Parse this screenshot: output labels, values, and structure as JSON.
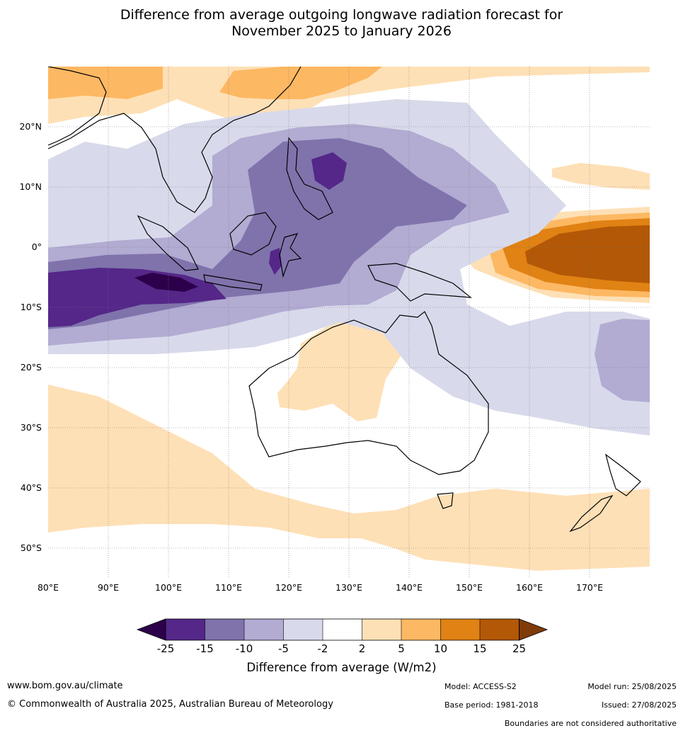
{
  "title": {
    "line1": "Difference from average outgoing longwave radiation forecast for",
    "line2": "November 2025 to January 2026"
  },
  "map": {
    "lat_ticks": [
      "20°N",
      "10°N",
      "0°",
      "10°S",
      "20°S",
      "30°S",
      "40°S",
      "50°S"
    ],
    "lon_ticks": [
      "80°E",
      "90°E",
      "100°E",
      "110°E",
      "120°E",
      "130°E",
      "140°E",
      "150°E",
      "160°E",
      "170°E"
    ],
    "extent_lon": [
      80,
      180
    ],
    "extent_lat": [
      -55,
      30
    ],
    "gridlines": true
  },
  "colorbar": {
    "labels": [
      "-25",
      "-15",
      "-10",
      "-5",
      "-2",
      "2",
      "5",
      "10",
      "15",
      "25"
    ],
    "colors": [
      "#2d004b",
      "#542788",
      "#8073ac",
      "#b2abd2",
      "#d8daeb",
      "#ffffff",
      "#fee0b6",
      "#fdb863",
      "#e08214",
      "#b35806",
      "#7f3b08"
    ],
    "title": "Difference from average (W/m2)"
  },
  "footer": {
    "website": "www.bom.gov.au/climate",
    "copyright": "© Commonwealth of Australia 2025, Australian Bureau of Meteorology",
    "model": "Model: ACCESS-S2",
    "base_period": "Base period: 1981-2018",
    "model_run": "Model run: 25/08/2025",
    "issued": "Issued: 27/08/2025",
    "disclaimer": "Boundaries are not considered authoritative"
  }
}
